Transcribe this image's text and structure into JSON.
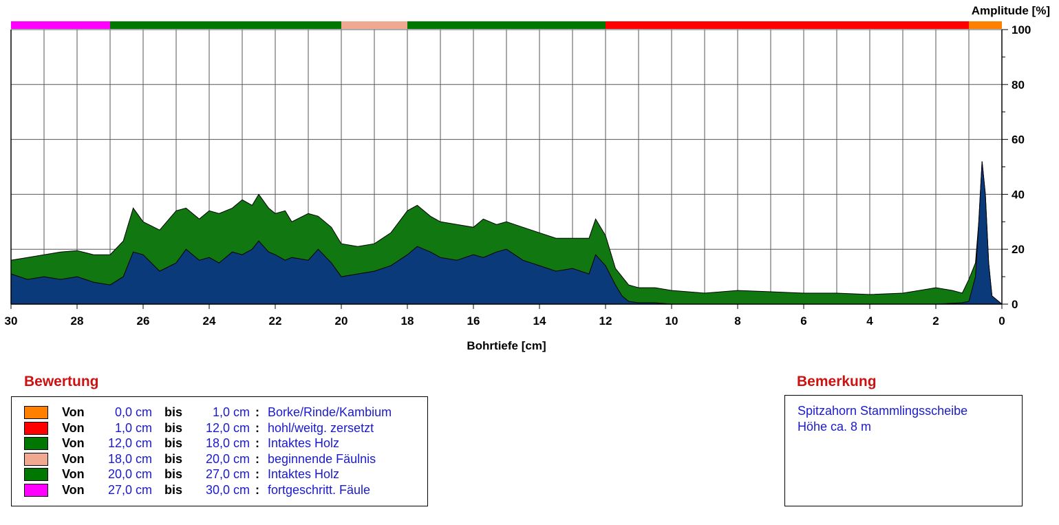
{
  "chart_data": {
    "type": "area",
    "xlabel": "Bohrtiefe [cm]",
    "ylabel": "Amplitude [%]",
    "xlim": [
      30,
      0
    ],
    "ylim": [
      0,
      100
    ],
    "x_ticks": [
      30,
      28,
      26,
      24,
      22,
      20,
      18,
      16,
      14,
      12,
      10,
      8,
      6,
      4,
      2,
      0
    ],
    "y_ticks": [
      0,
      20,
      40,
      60,
      80,
      100
    ],
    "grid": true,
    "series": [
      {
        "name": "",
        "color": "#117711",
        "x": [
          30,
          29.5,
          29,
          28.5,
          28,
          27.5,
          27,
          26.6,
          26.3,
          26,
          25.5,
          25,
          24.7,
          24.3,
          24,
          23.7,
          23.3,
          23,
          22.7,
          22.5,
          22.2,
          22,
          21.7,
          21.5,
          21,
          20.7,
          20.3,
          20,
          19.5,
          19,
          18.5,
          18,
          17.7,
          17.3,
          17,
          16.5,
          16,
          15.7,
          15.3,
          15,
          14.5,
          14,
          13.5,
          13,
          12.5,
          12.3,
          12,
          11.7,
          11.3,
          11,
          10.5,
          10,
          9,
          8,
          7,
          6,
          5,
          4,
          3,
          2.5,
          2,
          1.5,
          1.2,
          1,
          0.8,
          0.7,
          0.6,
          0.5,
          0.4,
          0.3,
          0
        ],
        "values": [
          16,
          17,
          18,
          19,
          19.5,
          18,
          18,
          23,
          35,
          30,
          27,
          34,
          35,
          31,
          34,
          33,
          35,
          38,
          36,
          40,
          35,
          33,
          34,
          30,
          33,
          32,
          28,
          22,
          21,
          22,
          26,
          34,
          36,
          32,
          30,
          29,
          28,
          31,
          29,
          30,
          28,
          26,
          24,
          24,
          24,
          31,
          25,
          13,
          7,
          6,
          6,
          5,
          4,
          5,
          4.5,
          4,
          4,
          3.5,
          4,
          5,
          6,
          5,
          4,
          9,
          15,
          30,
          52,
          40,
          15,
          3,
          0
        ]
      },
      {
        "name": "",
        "color": "#0a3a7a",
        "x": [
          30,
          29.5,
          29,
          28.5,
          28,
          27.5,
          27,
          26.6,
          26.3,
          26,
          25.5,
          25,
          24.7,
          24.3,
          24,
          23.7,
          23.3,
          23,
          22.7,
          22.5,
          22.2,
          22,
          21.7,
          21.5,
          21,
          20.7,
          20.3,
          20,
          19.5,
          19,
          18.5,
          18,
          17.7,
          17.3,
          17,
          16.5,
          16,
          15.7,
          15.3,
          15,
          14.5,
          14,
          13.5,
          13,
          12.5,
          12.3,
          12,
          11.7,
          11.5,
          11.3,
          11,
          10.5,
          10,
          2,
          1.2,
          1,
          0.8,
          0.7,
          0.6,
          0.5,
          0.4,
          0.3,
          0
        ],
        "values": [
          11,
          9,
          10,
          9,
          10,
          8,
          7,
          10,
          19,
          18,
          12,
          15,
          20,
          16,
          17,
          15,
          19,
          18,
          20,
          23,
          19,
          18,
          16,
          17,
          16,
          20,
          15,
          10,
          11,
          12,
          14,
          18,
          21,
          19,
          17,
          16,
          18,
          17,
          19,
          20,
          16,
          14,
          12,
          13,
          11,
          18,
          14,
          7,
          3,
          1,
          0.5,
          0.5,
          0,
          0,
          0.5,
          1,
          10,
          30,
          52,
          40,
          15,
          3,
          0
        ]
      }
    ],
    "rating_bar": [
      {
        "from": 0,
        "to": 1,
        "color": "#ff8000"
      },
      {
        "from": 1,
        "to": 12,
        "color": "#ff0000"
      },
      {
        "from": 12,
        "to": 18,
        "color": "#007700"
      },
      {
        "from": 18,
        "to": 20,
        "color": "#f0a890"
      },
      {
        "from": 20,
        "to": 27,
        "color": "#007700"
      },
      {
        "from": 27,
        "to": 30,
        "color": "#ff00ff"
      }
    ]
  },
  "bewertung": {
    "title": "Bewertung",
    "rows": [
      {
        "color": "#ff8000",
        "von": "Von",
        "from": "0,0 cm",
        "bis": "bis",
        "to": "1,0 cm",
        "sep": ":",
        "label": "Borke/Rinde/Kambium"
      },
      {
        "color": "#ff0000",
        "von": "Von",
        "from": "1,0 cm",
        "bis": "bis",
        "to": "12,0 cm",
        "sep": ":",
        "label": "hohl/weitg. zersetzt"
      },
      {
        "color": "#007700",
        "von": "Von",
        "from": "12,0 cm",
        "bis": "bis",
        "to": "18,0 cm",
        "sep": ":",
        "label": "Intaktes Holz"
      },
      {
        "color": "#f0a890",
        "von": "Von",
        "from": "18,0 cm",
        "bis": "bis",
        "to": "20,0 cm",
        "sep": ":",
        "label": "beginnende Fäulnis"
      },
      {
        "color": "#007700",
        "von": "Von",
        "from": "20,0 cm",
        "bis": "bis",
        "to": "27,0 cm",
        "sep": ":",
        "label": "Intaktes Holz"
      },
      {
        "color": "#ff00ff",
        "von": "Von",
        "from": "27,0 cm",
        "bis": "bis",
        "to": "30,0 cm",
        "sep": ":",
        "label": "fortgeschritt. Fäule"
      }
    ]
  },
  "bemerkung": {
    "title": "Bemerkung",
    "lines": [
      "Spitzahorn Stammlingsscheibe",
      "Höhe ca. 8 m"
    ]
  }
}
